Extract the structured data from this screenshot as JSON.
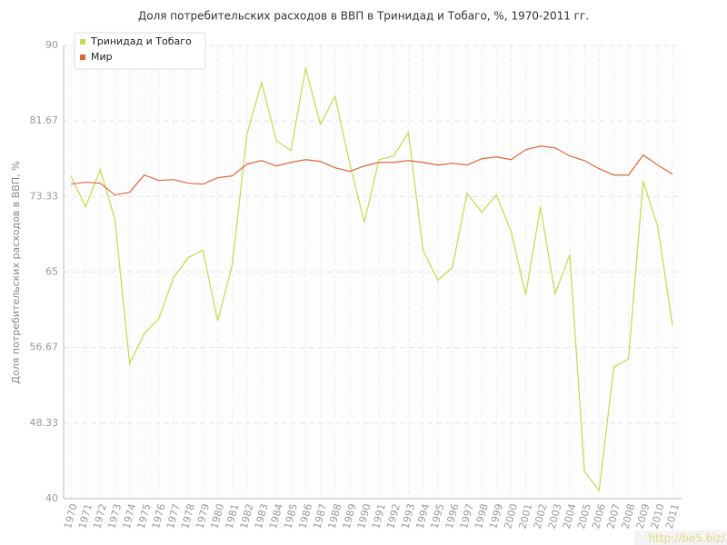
{
  "chart_data": {
    "type": "line",
    "title": "Доля потребительских расходов в ВВП в Тринидад и Тобаго, %, 1970-2011 гг.",
    "y_label": "Доля потребительских расходов в ВВП, %",
    "watermark": "http://be5.biz/",
    "categories": [
      "1970",
      "1971",
      "1972",
      "1973",
      "1974",
      "1975",
      "1976",
      "1977",
      "1978",
      "1979",
      "1980",
      "1981",
      "1982",
      "1983",
      "1984",
      "1985",
      "1986",
      "1987",
      "1988",
      "1989",
      "1990",
      "1991",
      "1992",
      "1993",
      "1994",
      "1995",
      "1996",
      "1997",
      "1998",
      "1999",
      "2000",
      "2001",
      "2002",
      "2003",
      "2004",
      "2005",
      "2006",
      "2007",
      "2008",
      "2009",
      "2010",
      "2011"
    ],
    "series": [
      {
        "name": "Тринидад и Тобаго",
        "color": "#c4dc4c",
        "values": [
          75.6,
          72.2,
          76.3,
          70.8,
          54.9,
          58.2,
          59.9,
          64.4,
          66.6,
          67.4,
          59.6,
          65.8,
          80.2,
          85.9,
          79.5,
          78.4,
          87.5,
          81.3,
          84.4,
          77.0,
          70.5,
          77.4,
          77.8,
          80.4,
          67.4,
          64.1,
          65.5,
          73.7,
          71.6,
          73.5,
          69.5,
          62.5,
          72.2,
          62.6,
          66.9,
          43.0,
          40.9,
          54.5,
          55.4,
          75.0,
          70.0,
          59.1
        ]
      },
      {
        "name": "Мир",
        "color": "#e0673c",
        "values": [
          74.7,
          74.9,
          74.8,
          73.5,
          73.8,
          75.7,
          75.1,
          75.2,
          74.8,
          74.7,
          75.4,
          75.6,
          76.9,
          77.3,
          76.7,
          77.1,
          77.4,
          77.2,
          76.5,
          76.1,
          76.7,
          77.1,
          77.1,
          77.3,
          77.1,
          76.8,
          77.0,
          76.8,
          77.5,
          77.7,
          77.4,
          78.5,
          78.9,
          78.7,
          77.8,
          77.3,
          76.4,
          75.7,
          75.7,
          77.9,
          76.8,
          75.8
        ]
      }
    ],
    "ylim": [
      40,
      90
    ],
    "yticks": [
      40,
      48.33,
      56.67,
      65,
      73.33,
      81.67,
      90
    ],
    "grid": true,
    "legend": "top-left"
  }
}
